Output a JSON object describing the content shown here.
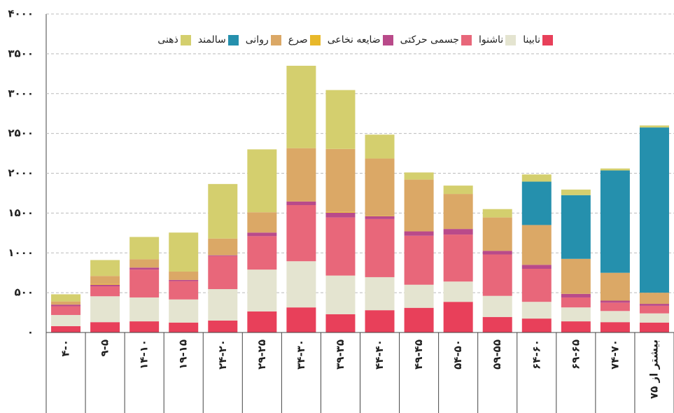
{
  "chart_data": {
    "type": "bar",
    "stacked": true,
    "categories": [
      "۴-۰",
      "۹-۵",
      "۱۴-۱۰",
      "۱۹-۱۵",
      "۲۴-۲۰",
      "۲۹-۲۵",
      "۳۴-۳۰",
      "۳۹-۳۵",
      "۴۴-۴۰",
      "۴۹-۴۵",
      "۵۴-۵۰",
      "۵۹-۵۵",
      "۶۴-۶۰",
      "۶۹-۶۵",
      "۷۴-۷۰",
      "بیشتر از ۷۵"
    ],
    "series": [
      {
        "name": "نابینا",
        "color": "#e8405a",
        "values": [
          80,
          130,
          140,
          125,
          150,
          265,
          315,
          230,
          280,
          310,
          385,
          195,
          175,
          140,
          130,
          125
        ]
      },
      {
        "name": "ناشنوا",
        "color": "#e4e4d0",
        "values": [
          140,
          325,
          300,
          290,
          395,
          525,
          580,
          485,
          415,
          290,
          255,
          265,
          210,
          175,
          140,
          115
        ]
      },
      {
        "name": "جسمی حرکتی",
        "color": "#e8677a",
        "values": [
          110,
          125,
          350,
          230,
          415,
          420,
          705,
          730,
          730,
          615,
          590,
          520,
          415,
          125,
          105,
          95
        ]
      },
      {
        "name": "ضایعه نخاعی",
        "color": "#b94a8a",
        "values": [
          20,
          20,
          25,
          15,
          10,
          45,
          45,
          60,
          35,
          55,
          70,
          45,
          50,
          45,
          25,
          25
        ]
      },
      {
        "name": "صرع",
        "color": "#e8b82a",
        "values": [
          0,
          10,
          0,
          0,
          0,
          0,
          0,
          10,
          5,
          0,
          0,
          0,
          0,
          0,
          0,
          0
        ]
      },
      {
        "name": "روانی",
        "color": "#dba866",
        "values": [
          40,
          100,
          105,
          105,
          210,
          255,
          670,
          790,
          720,
          650,
          440,
          420,
          500,
          440,
          350,
          140
        ]
      },
      {
        "name": "سالمند",
        "color": "#2590ad",
        "values": [
          0,
          0,
          0,
          0,
          0,
          0,
          0,
          0,
          0,
          0,
          0,
          0,
          545,
          800,
          1285,
          2075
        ]
      },
      {
        "name": "ذهنی",
        "color": "#d4cf6e",
        "values": [
          90,
          200,
          280,
          490,
          685,
          790,
          1035,
          740,
          300,
          90,
          105,
          105,
          90,
          70,
          25,
          25
        ]
      }
    ],
    "ylim": [
      0,
      4000
    ],
    "yticks": [
      {
        "value": 0,
        "label": "۰"
      },
      {
        "value": 500,
        "label": "۵۰۰"
      },
      {
        "value": 1000,
        "label": "۱۰۰۰"
      },
      {
        "value": 1500,
        "label": "۱۵۰۰"
      },
      {
        "value": 2000,
        "label": "۲۰۰۰"
      },
      {
        "value": 2500,
        "label": "۲۵۰۰"
      },
      {
        "value": 3000,
        "label": "۳۰۰۰"
      },
      {
        "value": 3500,
        "label": "۳۵۰۰"
      },
      {
        "value": 4000,
        "label": "۴۰۰۰"
      }
    ],
    "grid": true,
    "legend": "top"
  }
}
